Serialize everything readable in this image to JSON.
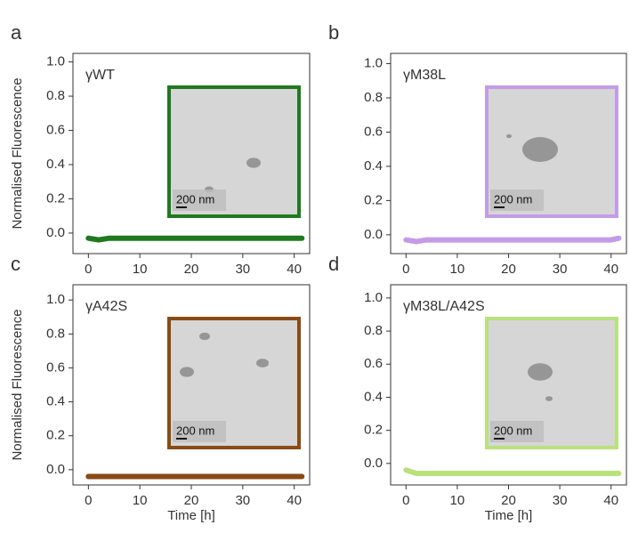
{
  "chart_data": [
    {
      "type": "line",
      "panel": "a",
      "label": "γWT",
      "ylabel": "Normalised Fluorescence",
      "inset_scale": "200 nm",
      "color": "#1f7a1f",
      "xlim": [
        -3,
        43
      ],
      "ylim": [
        -0.12,
        1.05
      ],
      "xticks": [
        0,
        10,
        20,
        30,
        40
      ],
      "yticks": [
        {
          "value": 0,
          "label": "0.0"
        },
        0.2,
        0.4,
        0.6,
        0.8,
        {
          "value": 1,
          "label": "1.0"
        }
      ],
      "x": [
        0,
        2,
        4,
        6,
        8,
        10,
        12,
        14,
        16,
        18,
        20,
        22,
        24,
        26,
        28,
        30,
        32,
        34,
        36,
        38,
        40,
        41.5
      ],
      "values": [
        -0.03,
        -0.04,
        -0.03,
        -0.03,
        -0.03,
        -0.03,
        -0.03,
        -0.03,
        -0.03,
        -0.03,
        -0.03,
        -0.03,
        -0.03,
        -0.03,
        -0.03,
        -0.03,
        -0.03,
        -0.03,
        -0.03,
        -0.03,
        -0.03,
        -0.03
      ]
    },
    {
      "type": "line",
      "panel": "b",
      "label": "γM38L",
      "inset_scale": "200 nm",
      "color": "#c49be8",
      "xlim": [
        -3,
        43
      ],
      "ylim": [
        -0.11,
        1.06
      ],
      "xticks": [
        0,
        10,
        20,
        30,
        40
      ],
      "yticks": [
        {
          "value": 0,
          "label": "0.0"
        },
        0.2,
        0.4,
        0.6,
        0.8,
        {
          "value": 1,
          "label": "1.0"
        }
      ],
      "x": [
        0,
        2,
        4,
        6,
        8,
        10,
        12,
        14,
        16,
        18,
        20,
        22,
        24,
        26,
        28,
        30,
        32,
        34,
        36,
        38,
        40,
        41.5
      ],
      "values": [
        -0.03,
        -0.04,
        -0.03,
        -0.03,
        -0.03,
        -0.03,
        -0.03,
        -0.03,
        -0.03,
        -0.03,
        -0.03,
        -0.03,
        -0.03,
        -0.03,
        -0.03,
        -0.03,
        -0.03,
        -0.03,
        -0.03,
        -0.03,
        -0.03,
        -0.02
      ]
    },
    {
      "type": "line",
      "panel": "c",
      "label": "γA42S",
      "ylabel": "Normalised Fluorescence",
      "xlabel": "Time [h]",
      "inset_scale": "200 nm",
      "color": "#8b4a14",
      "xlim": [
        -3,
        43
      ],
      "ylim": [
        -0.09,
        1.09
      ],
      "xticks": [
        0,
        10,
        20,
        30,
        40
      ],
      "yticks": [
        {
          "value": 0,
          "label": "0.0"
        },
        0.2,
        0.4,
        0.6,
        0.8,
        {
          "value": 1,
          "label": "1.0"
        }
      ],
      "x": [
        0,
        2,
        4,
        6,
        8,
        10,
        12,
        14,
        16,
        18,
        20,
        22,
        24,
        26,
        28,
        30,
        32,
        34,
        36,
        38,
        40,
        41.5
      ],
      "values": [
        -0.04,
        -0.04,
        -0.04,
        -0.04,
        -0.04,
        -0.04,
        -0.04,
        -0.04,
        -0.04,
        -0.04,
        -0.04,
        -0.04,
        -0.04,
        -0.04,
        -0.04,
        -0.04,
        -0.04,
        -0.04,
        -0.04,
        -0.04,
        -0.04,
        -0.04
      ]
    },
    {
      "type": "line",
      "panel": "d",
      "label": "γM38L/A42S",
      "xlabel": "Time [h]",
      "inset_scale": "200 nm",
      "color": "#b8e27c",
      "xlim": [
        -3,
        43
      ],
      "ylim": [
        -0.13,
        1.08
      ],
      "xticks": [
        0,
        10,
        20,
        30,
        40
      ],
      "yticks": [
        {
          "value": 0,
          "label": "0.0"
        },
        0.2,
        0.4,
        0.6,
        0.8,
        {
          "value": 1,
          "label": "1.0"
        }
      ],
      "x": [
        0,
        2,
        4,
        6,
        8,
        10,
        12,
        14,
        16,
        18,
        20,
        22,
        24,
        26,
        28,
        30,
        32,
        34,
        36,
        38,
        40,
        41.5
      ],
      "values": [
        -0.04,
        -0.06,
        -0.06,
        -0.06,
        -0.06,
        -0.06,
        -0.06,
        -0.06,
        -0.06,
        -0.06,
        -0.06,
        -0.06,
        -0.06,
        -0.06,
        -0.06,
        -0.06,
        -0.06,
        -0.06,
        -0.06,
        -0.06,
        -0.06,
        -0.06
      ]
    }
  ]
}
